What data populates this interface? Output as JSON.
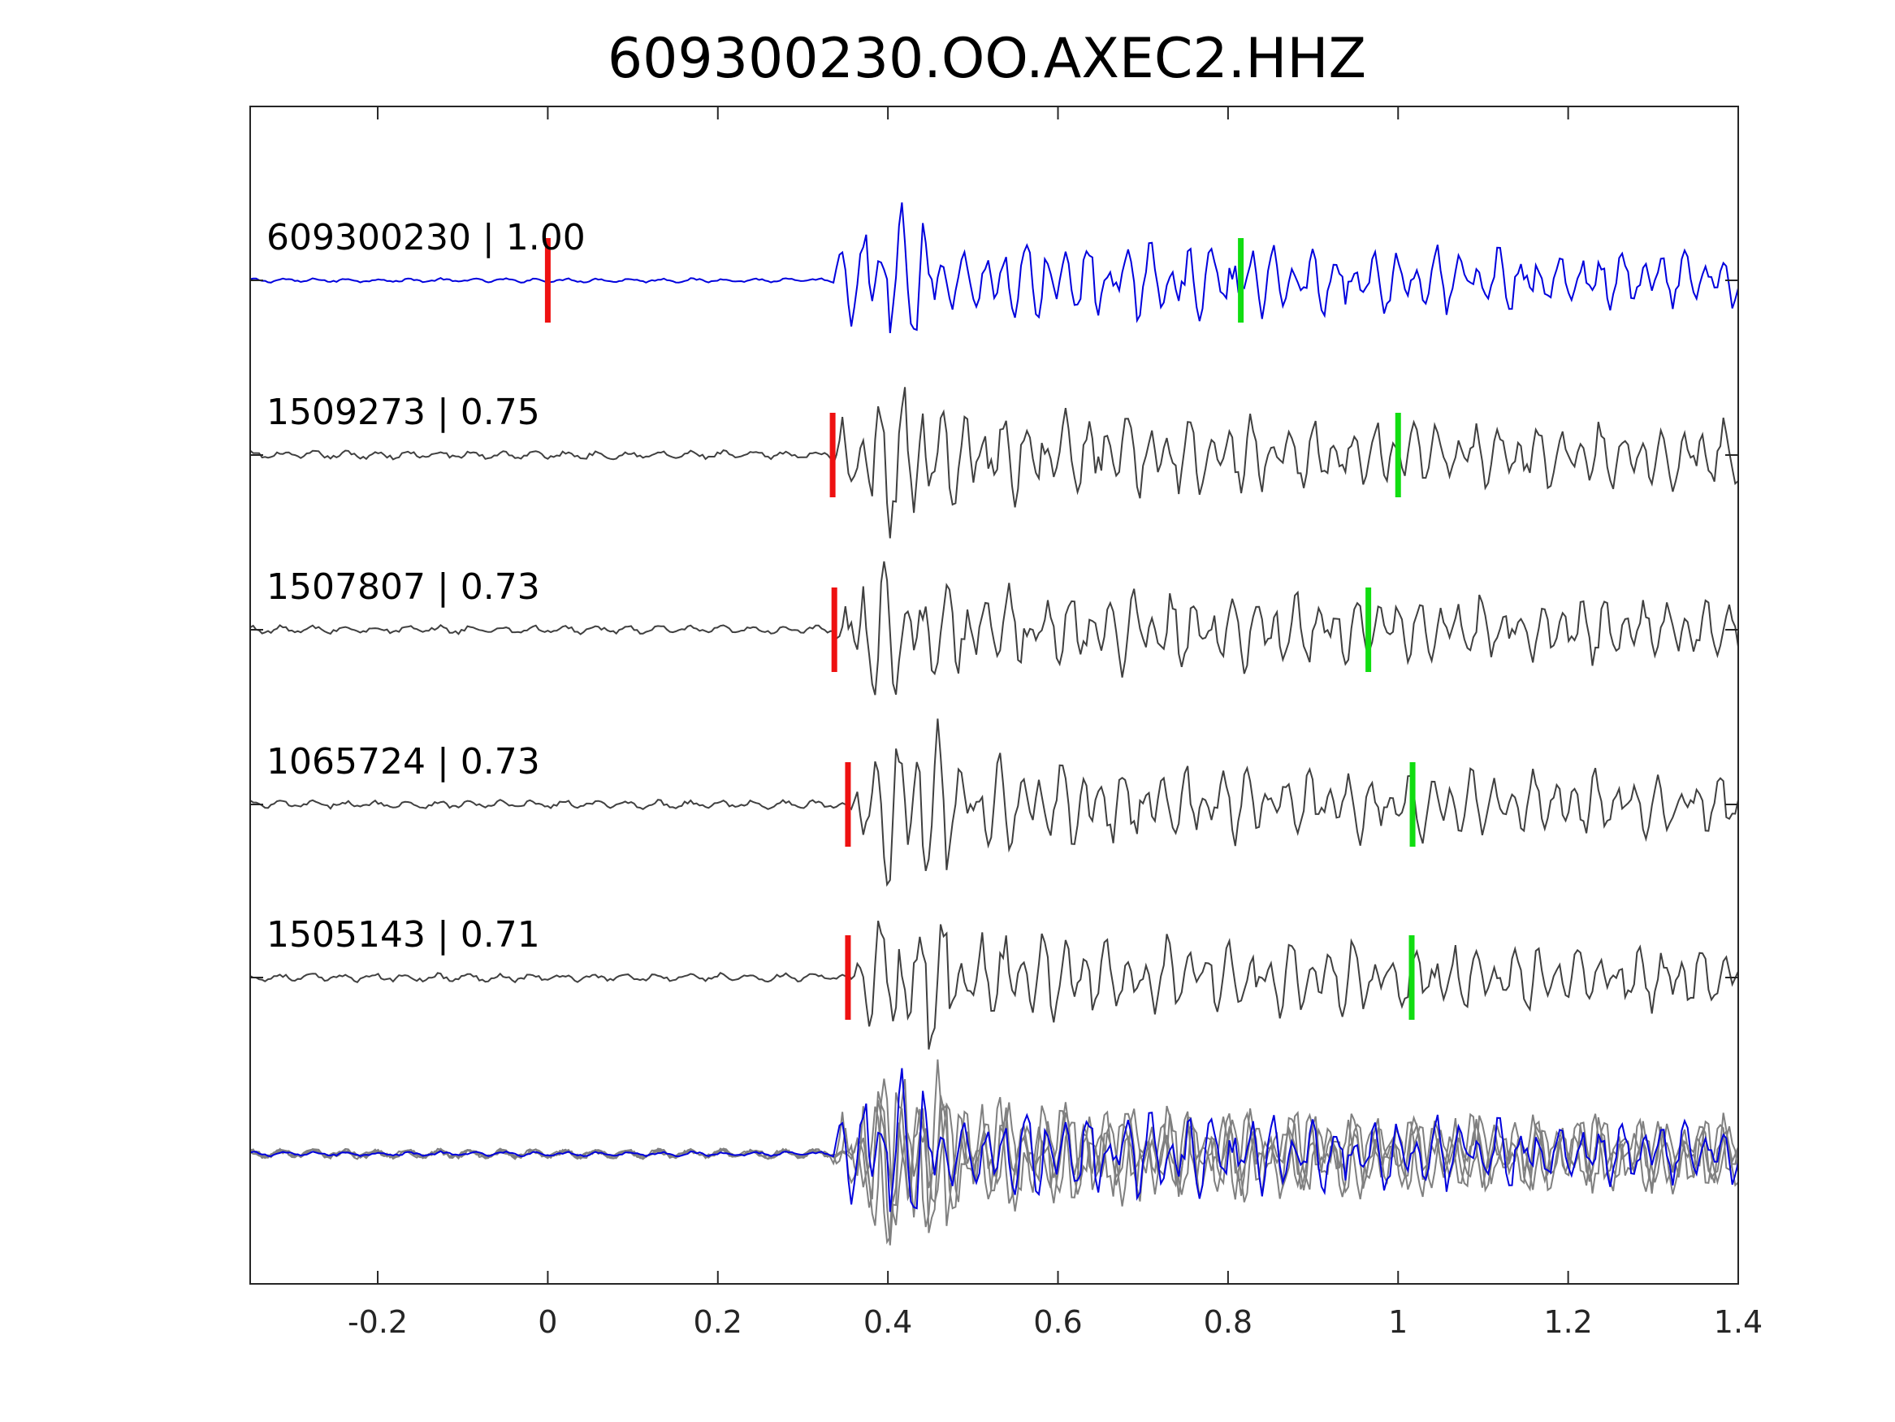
{
  "chart_data": {
    "type": "line",
    "title": "609300230.OO.AXEC2.HHZ",
    "xlabel": "",
    "ylabel": "",
    "xlim": [
      -0.35,
      1.4
    ],
    "xticks": [
      -0.2,
      0,
      0.2,
      0.4,
      0.6,
      0.8,
      1,
      1.2,
      1.4
    ],
    "xtick_labels": [
      "-0.2",
      "0",
      "0.2",
      "0.4",
      "0.6",
      "0.8",
      "1",
      "1.2",
      "1.4"
    ],
    "grid": false,
    "colors": {
      "master": "#0000dd",
      "neighbor": "#404040",
      "stack": "#808080",
      "p_pick": "#ee1111",
      "s_pick": "#11dd11"
    },
    "traces": [
      {
        "label": "609300230 | 1.00",
        "onset": 0.33,
        "p_pick": 0.0,
        "s_pick": 0.815,
        "color": "master"
      },
      {
        "label": "1509273 | 0.75",
        "onset": 0.33,
        "p_pick": 0.335,
        "s_pick": 1.0,
        "color": "neighbor"
      },
      {
        "label": "1507807 | 0.73",
        "onset": 0.335,
        "p_pick": 0.337,
        "s_pick": 0.965,
        "color": "neighbor"
      },
      {
        "label": "1065724 | 0.73",
        "onset": 0.35,
        "p_pick": 0.353,
        "s_pick": 1.017,
        "color": "neighbor"
      },
      {
        "label": "1505143 | 0.71",
        "onset": 0.355,
        "p_pick": 0.353,
        "s_pick": 1.016,
        "color": "neighbor"
      }
    ],
    "overlay": {
      "label": ""
    }
  }
}
